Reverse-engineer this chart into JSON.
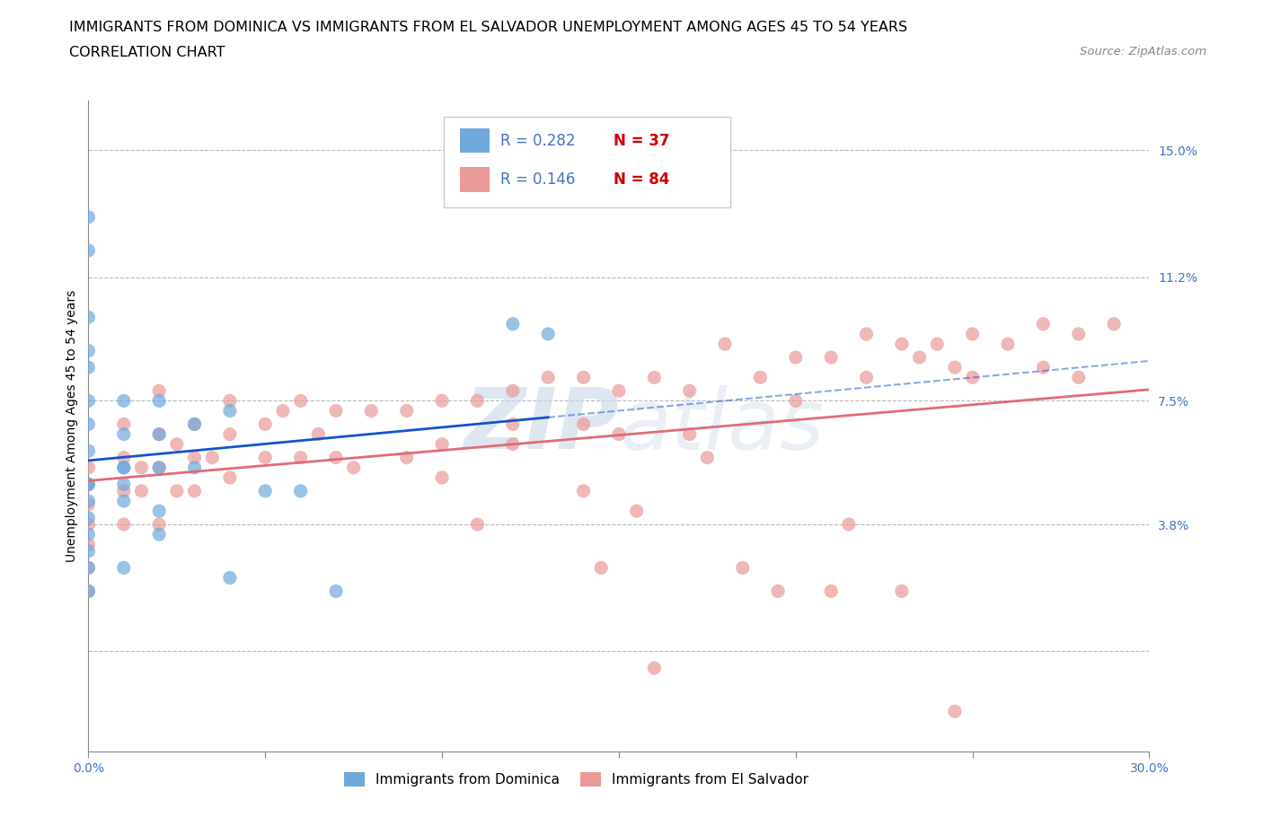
{
  "title_line1": "IMMIGRANTS FROM DOMINICA VS IMMIGRANTS FROM EL SALVADOR UNEMPLOYMENT AMONG AGES 45 TO 54 YEARS",
  "title_line2": "CORRELATION CHART",
  "source_text": "Source: ZipAtlas.com",
  "ylabel": "Unemployment Among Ages 45 to 54 years",
  "xlim": [
    0.0,
    0.3
  ],
  "ylim": [
    -0.03,
    0.165
  ],
  "xtick_vals": [
    0.0,
    0.05,
    0.1,
    0.15,
    0.2,
    0.25,
    0.3
  ],
  "xtick_labels": [
    "0.0%",
    "",
    "",
    "",
    "",
    "",
    "30.0%"
  ],
  "ytick_vals": [
    0.0,
    0.038,
    0.075,
    0.112,
    0.15
  ],
  "ytick_labels": [
    "",
    "3.8%",
    "7.5%",
    "11.2%",
    "15.0%"
  ],
  "dominica_color": "#6fa8dc",
  "el_salvador_color": "#ea9999",
  "dominica_line_color": "#1155cc",
  "el_salvador_line_color": "#e06c75",
  "legend_R_color": "#4472c4",
  "legend_N_color": "#cc0000",
  "watermark_text": "ZIPatlas",
  "dominica_x": [
    0.0,
    0.0,
    0.0,
    0.0,
    0.0,
    0.0,
    0.0,
    0.0,
    0.0,
    0.01,
    0.01,
    0.01,
    0.01,
    0.01,
    0.02,
    0.02,
    0.02,
    0.02,
    0.02,
    0.03,
    0.03,
    0.04,
    0.04,
    0.05,
    0.06,
    0.07,
    0.12,
    0.13,
    0.0,
    0.0,
    0.0,
    0.0,
    0.0,
    0.0,
    0.0,
    0.01,
    0.01
  ],
  "dominica_y": [
    0.13,
    0.12,
    0.1,
    0.09,
    0.085,
    0.075,
    0.068,
    0.06,
    0.05,
    0.075,
    0.065,
    0.05,
    0.055,
    0.045,
    0.075,
    0.065,
    0.055,
    0.042,
    0.035,
    0.068,
    0.055,
    0.072,
    0.022,
    0.048,
    0.048,
    0.018,
    0.098,
    0.095,
    0.05,
    0.045,
    0.04,
    0.035,
    0.03,
    0.025,
    0.018,
    0.055,
    0.025
  ],
  "el_salvador_x": [
    0.0,
    0.0,
    0.0,
    0.0,
    0.0,
    0.0,
    0.0,
    0.01,
    0.01,
    0.01,
    0.01,
    0.015,
    0.015,
    0.02,
    0.02,
    0.02,
    0.02,
    0.025,
    0.025,
    0.03,
    0.03,
    0.03,
    0.035,
    0.04,
    0.04,
    0.04,
    0.05,
    0.05,
    0.055,
    0.06,
    0.06,
    0.065,
    0.07,
    0.07,
    0.075,
    0.08,
    0.09,
    0.09,
    0.1,
    0.1,
    0.11,
    0.12,
    0.12,
    0.13,
    0.14,
    0.14,
    0.15,
    0.15,
    0.16,
    0.17,
    0.17,
    0.18,
    0.19,
    0.2,
    0.2,
    0.21,
    0.22,
    0.22,
    0.23,
    0.235,
    0.24,
    0.245,
    0.25,
    0.25,
    0.26,
    0.27,
    0.27,
    0.28,
    0.28,
    0.29,
    0.12,
    0.14,
    0.1,
    0.11,
    0.145,
    0.16,
    0.155,
    0.175,
    0.185,
    0.195,
    0.21,
    0.215,
    0.23,
    0.245
  ],
  "el_salvador_y": [
    0.055,
    0.05,
    0.044,
    0.038,
    0.032,
    0.025,
    0.018,
    0.068,
    0.058,
    0.048,
    0.038,
    0.055,
    0.048,
    0.078,
    0.065,
    0.055,
    0.038,
    0.062,
    0.048,
    0.068,
    0.058,
    0.048,
    0.058,
    0.075,
    0.065,
    0.052,
    0.068,
    0.058,
    0.072,
    0.075,
    0.058,
    0.065,
    0.072,
    0.058,
    0.055,
    0.072,
    0.072,
    0.058,
    0.075,
    0.062,
    0.075,
    0.078,
    0.062,
    0.082,
    0.082,
    0.068,
    0.078,
    0.065,
    0.082,
    0.078,
    0.065,
    0.092,
    0.082,
    0.088,
    0.075,
    0.088,
    0.095,
    0.082,
    0.092,
    0.088,
    0.092,
    0.085,
    0.095,
    0.082,
    0.092,
    0.098,
    0.085,
    0.095,
    0.082,
    0.098,
    0.068,
    0.048,
    0.052,
    0.038,
    0.025,
    -0.005,
    0.042,
    0.058,
    0.025,
    0.018,
    0.018,
    0.038,
    0.018,
    -0.018
  ],
  "grid_color": "#b8b8b8",
  "background_color": "#ffffff",
  "title_fontsize": 11.5,
  "label_fontsize": 10,
  "tick_fontsize": 10,
  "ytick_color": "#4472c4",
  "xtick_color": "#4472c4"
}
